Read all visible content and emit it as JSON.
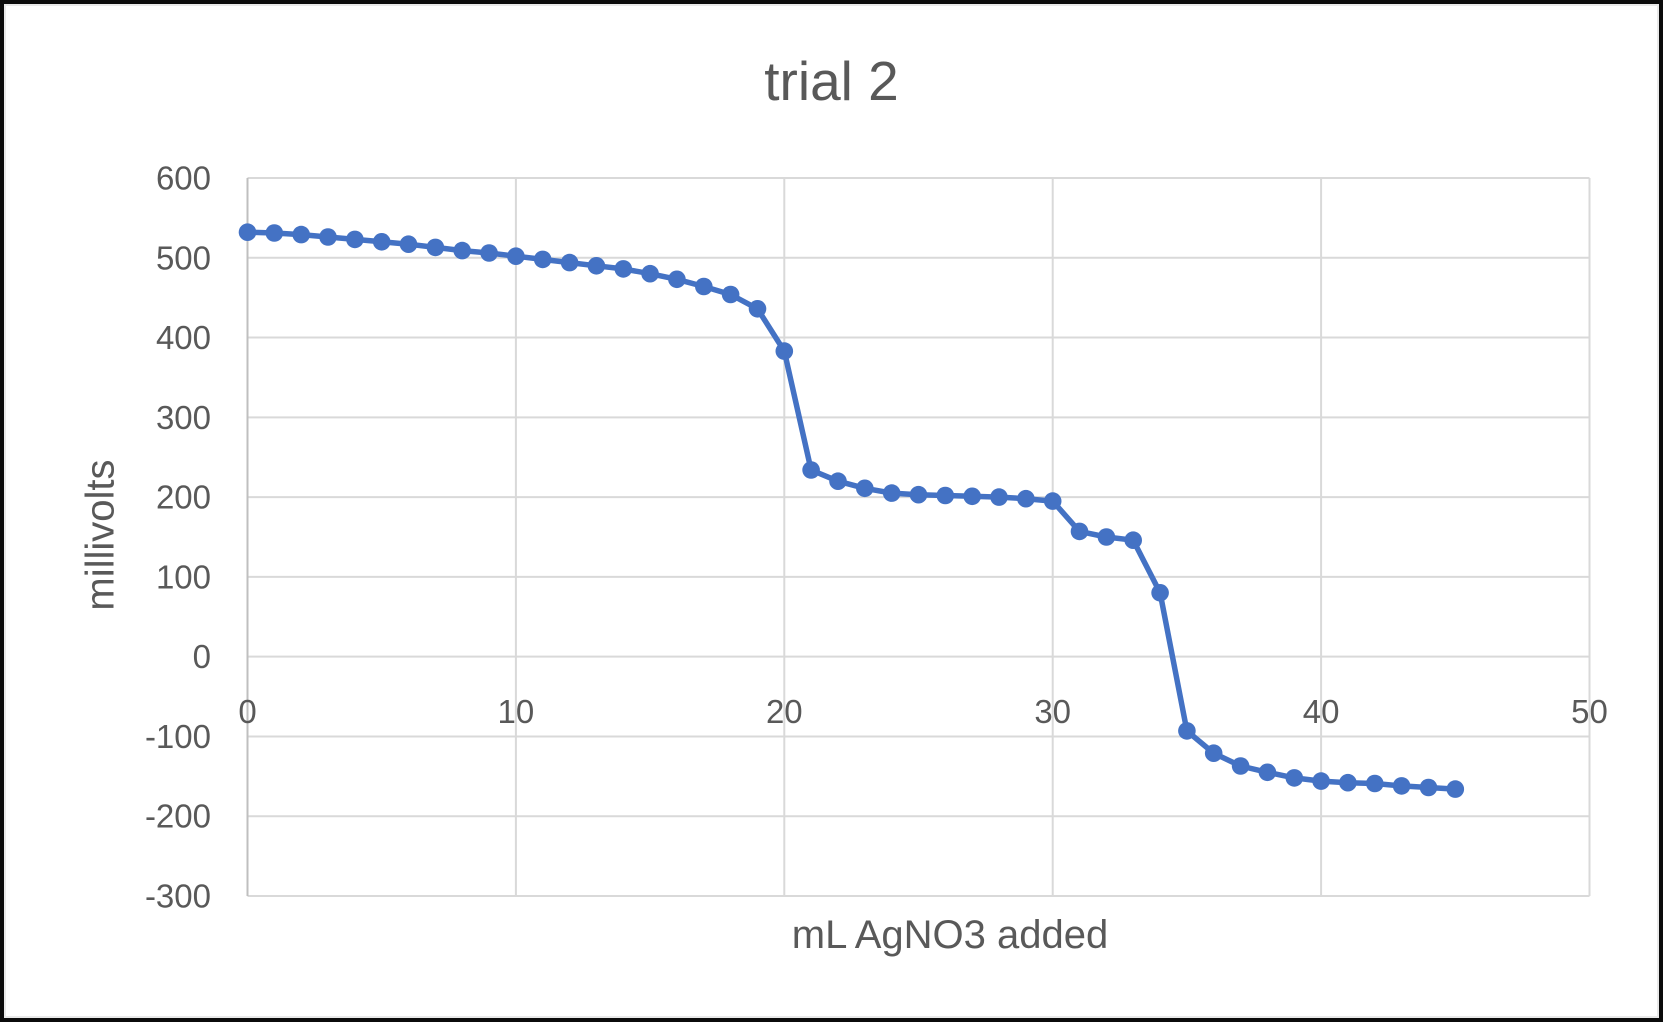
{
  "window": {
    "background": "#ffffff",
    "border_color": "#0b0b0b"
  },
  "chart_data": {
    "type": "line",
    "title": "trial 2",
    "xlabel": "mL AgNO3 added",
    "ylabel": "millivolts",
    "series": [
      {
        "name": "trial 2",
        "x": [
          0,
          1,
          2,
          3,
          4,
          5,
          6,
          7,
          8,
          9,
          10,
          11,
          12,
          13,
          14,
          15,
          16,
          17,
          18,
          19,
          20,
          21,
          22,
          23,
          24,
          25,
          26,
          27,
          28,
          29,
          30,
          31,
          32,
          33,
          34,
          35,
          36,
          37,
          38,
          39,
          40,
          41,
          42,
          43,
          44,
          45
        ],
        "y": [
          532,
          531,
          529,
          526,
          523,
          520,
          517,
          513,
          509,
          506,
          502,
          498,
          494,
          490,
          486,
          480,
          473,
          464,
          454,
          436,
          383,
          234,
          220,
          211,
          205,
          203,
          202,
          201,
          200,
          198,
          195,
          157,
          150,
          146,
          80,
          -93,
          -121,
          -137,
          -145,
          -152,
          -156,
          -158,
          -159,
          -162,
          -164,
          -166
        ]
      }
    ],
    "xlim": [
      0,
      50
    ],
    "ylim": [
      -300,
      600
    ],
    "x_ticks": [
      0,
      10,
      20,
      30,
      40,
      50
    ],
    "y_ticks": [
      600,
      500,
      400,
      300,
      200,
      100,
      0,
      -100,
      -200,
      -300
    ],
    "grid": true,
    "legend_position": "none",
    "line_color": "#4472C4",
    "marker": "circle",
    "marker_color": "#4472C4",
    "text_color": "#595959",
    "grid_color": "#D9D9D9",
    "axis_color": "#BFBFBF"
  }
}
